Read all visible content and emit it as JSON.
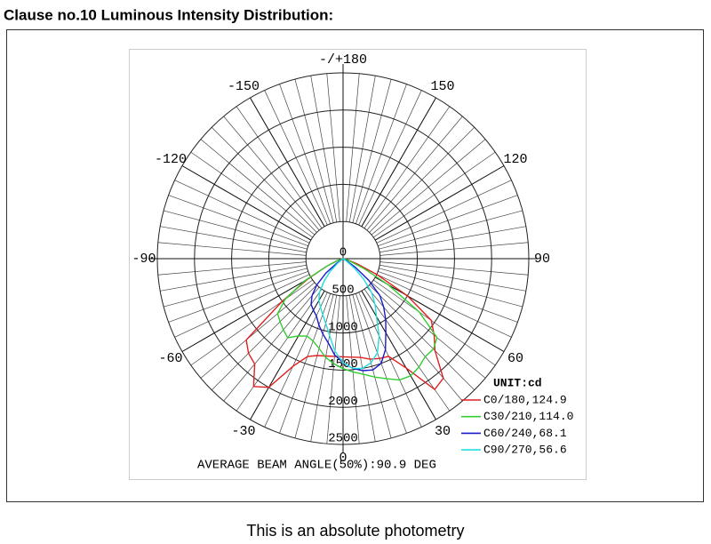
{
  "chart_data": {
    "type": "polar",
    "title": "Clause no.10 Luminous Intensity Distribution:",
    "caption": "This is an absolute photometry",
    "annotation": "AVERAGE BEAM ANGLE(50%):90.9 DEG",
    "legend_title": "UNIT:cd",
    "theta": [
      -90,
      -85,
      -80,
      -75,
      -70,
      -65,
      -60,
      -55,
      -50,
      -45,
      -40,
      -35,
      -30,
      -25,
      -20,
      -15,
      -10,
      -5,
      0,
      5,
      10,
      15,
      20,
      25,
      30,
      35,
      40,
      45,
      50,
      55,
      60,
      65,
      70,
      75,
      80,
      85,
      90
    ],
    "rlim": [
      0,
      2500
    ],
    "rticks": [
      0,
      500,
      1000,
      1500,
      2000,
      2500
    ],
    "thetaticks": [
      0,
      30,
      60,
      90,
      120,
      150,
      {
        "value": 180,
        "label": "-/+180"
      },
      -150,
      -120,
      -90,
      -60,
      -30
    ],
    "grid": true,
    "legend_position": "lower right",
    "series": [
      {
        "name": "C0/180,124.9",
        "color": "#e02020",
        "values": [
          0,
          0,
          10,
          40,
          100,
          250,
          550,
          1000,
          1700,
          1800,
          1850,
          2100,
          2000,
          1600,
          1400,
          1350,
          1330,
          1320,
          1320,
          1330,
          1350,
          1400,
          1430,
          1450,
          1700,
          2150,
          2100,
          1750,
          1600,
          1450,
          1000,
          500,
          200,
          60,
          15,
          0,
          0
        ]
      },
      {
        "name": "C30/210,114.0",
        "color": "#33cc33",
        "values": [
          0,
          0,
          0,
          20,
          80,
          250,
          600,
          950,
          1150,
          1200,
          1250,
          1300,
          1200,
          1150,
          1180,
          1250,
          1350,
          1420,
          1480,
          1530,
          1580,
          1650,
          1720,
          1800,
          1820,
          1780,
          1720,
          1720,
          1650,
          1250,
          700,
          300,
          100,
          30,
          0,
          0,
          0
        ]
      },
      {
        "name": "C60/240,68.1",
        "color": "#1a1acc",
        "values": [
          0,
          0,
          0,
          0,
          0,
          0,
          0,
          100,
          300,
          500,
          650,
          750,
          800,
          850,
          950,
          1050,
          1150,
          1300,
          1400,
          1480,
          1530,
          1550,
          1500,
          1350,
          1150,
          1000,
          850,
          700,
          450,
          200,
          50,
          0,
          0,
          0,
          0,
          0,
          0
        ]
      },
      {
        "name": "C90/270,56.6",
        "color": "#22dddd",
        "values": [
          0,
          0,
          0,
          0,
          0,
          0,
          0,
          0,
          100,
          250,
          400,
          550,
          650,
          720,
          800,
          900,
          1050,
          1250,
          1400,
          1480,
          1500,
          1450,
          1350,
          1150,
          900,
          750,
          600,
          400,
          200,
          50,
          0,
          0,
          0,
          0,
          0,
          0,
          0
        ]
      }
    ]
  }
}
